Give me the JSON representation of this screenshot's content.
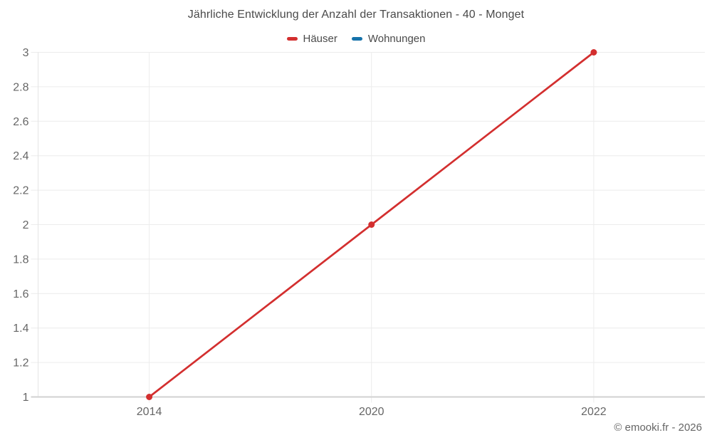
{
  "chart_data": {
    "type": "line",
    "title": "Jährliche Entwicklung der Anzahl der Transaktionen - 40 - Monget",
    "categories": [
      "2014",
      "2020",
      "2022"
    ],
    "series": [
      {
        "name": "Häuser",
        "color": "#d32f2f",
        "values": [
          1,
          2,
          3
        ]
      },
      {
        "name": "Wohnungen",
        "color": "#1572aa",
        "values": []
      }
    ],
    "xlabel": "",
    "ylabel": "",
    "ylim": [
      1,
      3
    ],
    "yticks": [
      3,
      2.8,
      2.6,
      2.4,
      2.2,
      2,
      1.8,
      1.6,
      1.4,
      1.2,
      1
    ],
    "grid": true,
    "legend_position": "top",
    "marker": "circle"
  },
  "footer": "© emooki.fr - 2026",
  "colors": {
    "grid": "#ececec",
    "axis_bottom": "#d2d2d2",
    "axis_left": "#e5e5e5",
    "tick_text": "#666666",
    "title_text": "#4a4a4a",
    "footer_text": "#666666",
    "background": "#ffffff"
  }
}
